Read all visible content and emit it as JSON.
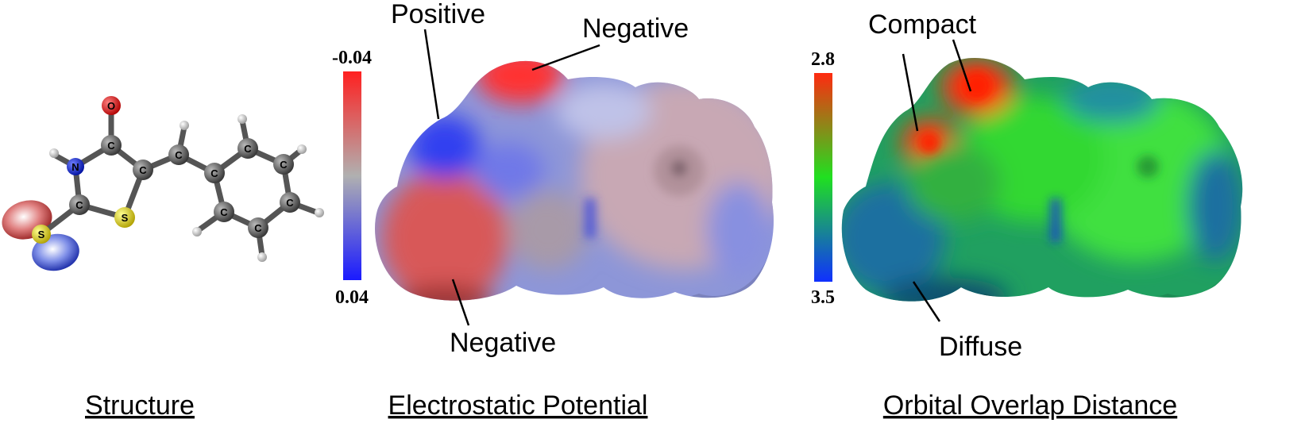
{
  "panels": {
    "structure": {
      "caption": "Structure",
      "atoms": [
        {
          "id": "O",
          "label": "O",
          "color": "#e0201c"
        },
        {
          "id": "C1",
          "label": "C",
          "color": "#555555"
        },
        {
          "id": "N",
          "label": "N",
          "color": "#2030c8"
        },
        {
          "id": "C2",
          "label": "C",
          "color": "#555555"
        },
        {
          "id": "S1",
          "label": "S",
          "color": "#e8e000"
        },
        {
          "id": "S2",
          "label": "S",
          "color": "#e8e000"
        },
        {
          "id": "C3",
          "label": "C",
          "color": "#555555"
        },
        {
          "id": "C4",
          "label": "C",
          "color": "#555555"
        },
        {
          "id": "C5",
          "label": "C",
          "color": "#555555"
        },
        {
          "id": "C6",
          "label": "C",
          "color": "#555555"
        },
        {
          "id": "C7",
          "label": "C",
          "color": "#555555"
        },
        {
          "id": "C8",
          "label": "C",
          "color": "#555555"
        },
        {
          "id": "C9",
          "label": "C",
          "color": "#555555"
        },
        {
          "id": "C10",
          "label": "C",
          "color": "#555555"
        }
      ]
    },
    "esp": {
      "caption": "Electrostatic Potential",
      "scale_top": "-0.04",
      "scale_bottom": "0.04",
      "labels": {
        "positive": "Positive",
        "negative_top": "Negative",
        "negative_bottom": "Negative"
      },
      "colors": {
        "high": "#ff2020",
        "mid": "#b0b0b0",
        "low": "#1a1aff"
      }
    },
    "ood": {
      "caption": "Orbital Overlap Distance",
      "scale_top": "2.8",
      "scale_bottom": "3.5",
      "labels": {
        "compact": "Compact",
        "diffuse": "Diffuse"
      },
      "colors": {
        "high": "#ff2a10",
        "mid": "#20e020",
        "low": "#1030ff"
      }
    }
  }
}
